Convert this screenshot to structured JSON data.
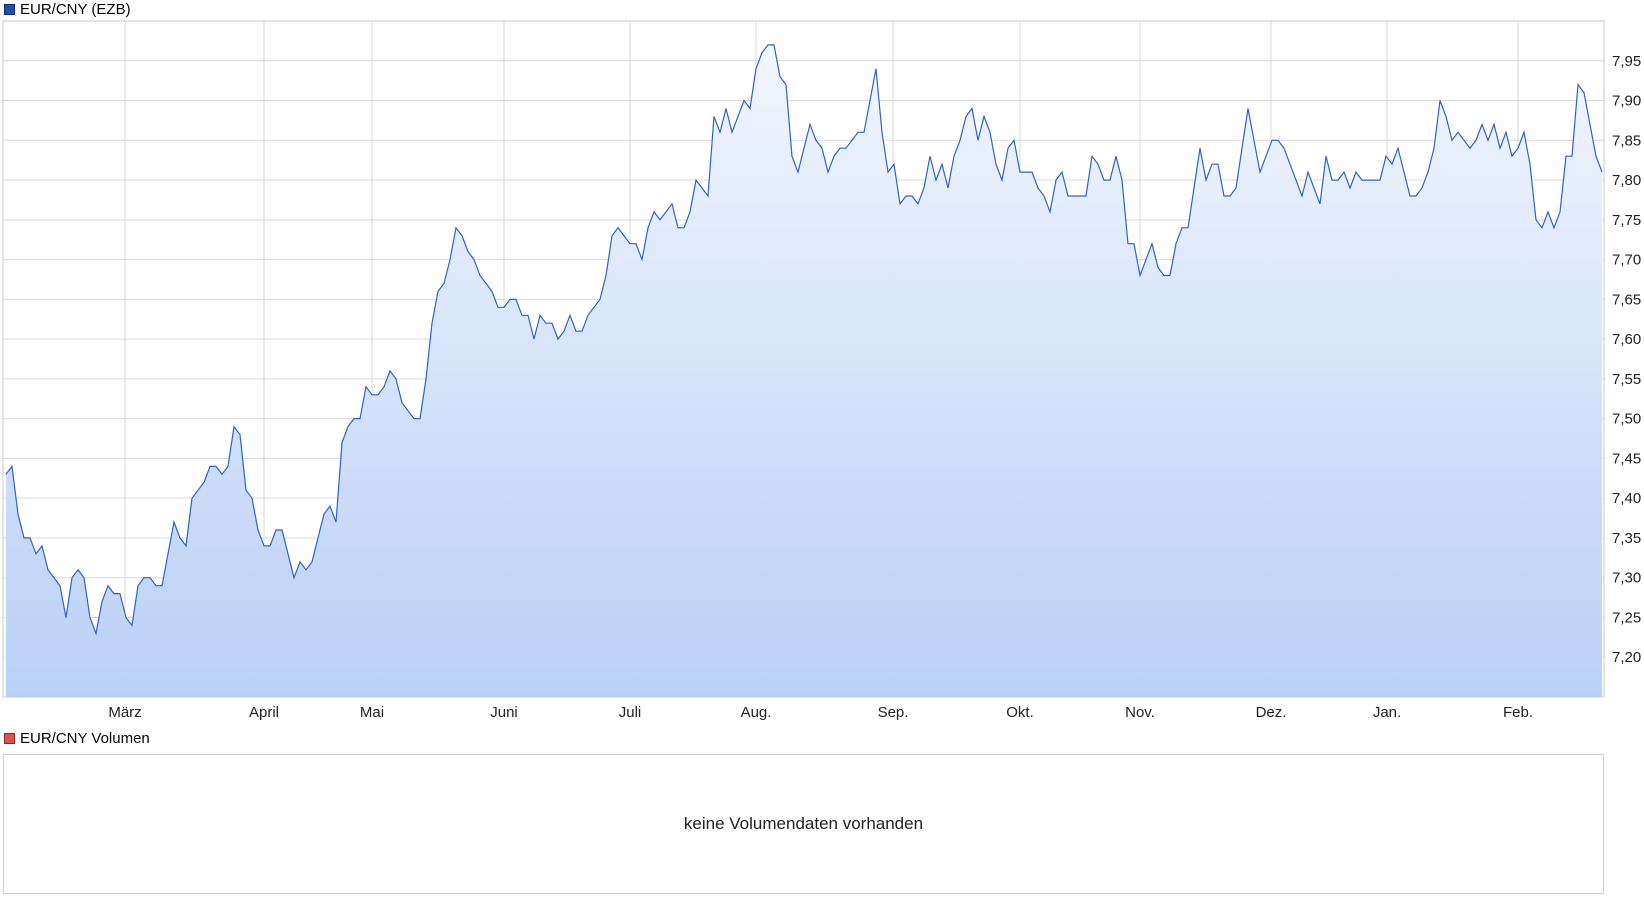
{
  "legend": {
    "main_label": "EUR/CNY (EZB)",
    "main_color": "#1a4fb3",
    "volume_label": "EUR/CNY Volumen",
    "volume_color": "#d9534f"
  },
  "volume_panel": {
    "message": "keine Volumendaten vorhanden"
  },
  "chart_data": {
    "type": "area",
    "series": [
      {
        "values": [
          7.43,
          7.44,
          7.38,
          7.35,
          7.35,
          7.33,
          7.34,
          7.31,
          7.3,
          7.29,
          7.25,
          7.3,
          7.31,
          7.3,
          7.25,
          7.23,
          7.27,
          7.29,
          7.28,
          7.28,
          7.25,
          7.24,
          7.29,
          7.3,
          7.3,
          7.29,
          7.29,
          7.33,
          7.37,
          7.35,
          7.34,
          7.4,
          7.41,
          7.42,
          7.44,
          7.44,
          7.43,
          7.44,
          7.49,
          7.48,
          7.41,
          7.4,
          7.36,
          7.34,
          7.34,
          7.36,
          7.36,
          7.33,
          7.3,
          7.32,
          7.31,
          7.32,
          7.35,
          7.38,
          7.39,
          7.37,
          7.47,
          7.49,
          7.5,
          7.5,
          7.54,
          7.53,
          7.53,
          7.54,
          7.56,
          7.55,
          7.52,
          7.51,
          7.5,
          7.5,
          7.55,
          7.62,
          7.66,
          7.67,
          7.7,
          7.74,
          7.73,
          7.71,
          7.7,
          7.68,
          7.67,
          7.66,
          7.64,
          7.64,
          7.65,
          7.65,
          7.63,
          7.63,
          7.6,
          7.63,
          7.62,
          7.62,
          7.6,
          7.61,
          7.63,
          7.61,
          7.61,
          7.63,
          7.64,
          7.65,
          7.68,
          7.73,
          7.74,
          7.73,
          7.72,
          7.72,
          7.7,
          7.74,
          7.76,
          7.75,
          7.76,
          7.77,
          7.74,
          7.74,
          7.76,
          7.8,
          7.79,
          7.78,
          7.88,
          7.86,
          7.89,
          7.86,
          7.88,
          7.9,
          7.89,
          7.94,
          7.96,
          7.97,
          7.97,
          7.93,
          7.92,
          7.83,
          7.81,
          7.84,
          7.87,
          7.85,
          7.84,
          7.81,
          7.83,
          7.84,
          7.84,
          7.85,
          7.86,
          7.86,
          7.9,
          7.94,
          7.86,
          7.81,
          7.82,
          7.77,
          7.78,
          7.78,
          7.77,
          7.79,
          7.83,
          7.8,
          7.82,
          7.79,
          7.83,
          7.85,
          7.88,
          7.89,
          7.85,
          7.88,
          7.86,
          7.82,
          7.8,
          7.84,
          7.85,
          7.81,
          7.81,
          7.81,
          7.79,
          7.78,
          7.76,
          7.8,
          7.81,
          7.78,
          7.78,
          7.78,
          7.78,
          7.83,
          7.82,
          7.8,
          7.8,
          7.83,
          7.8,
          7.72,
          7.72,
          7.68,
          7.7,
          7.72,
          7.69,
          7.68,
          7.68,
          7.72,
          7.74,
          7.74,
          7.79,
          7.84,
          7.8,
          7.82,
          7.82,
          7.78,
          7.78,
          7.79,
          7.84,
          7.89,
          7.85,
          7.81,
          7.83,
          7.85,
          7.85,
          7.84,
          7.82,
          7.8,
          7.78,
          7.81,
          7.79,
          7.77,
          7.83,
          7.8,
          7.8,
          7.81,
          7.79,
          7.81,
          7.8,
          7.8,
          7.8,
          7.8,
          7.83,
          7.82,
          7.84,
          7.81,
          7.78,
          7.78,
          7.79,
          7.81,
          7.84,
          7.9,
          7.88,
          7.85,
          7.86,
          7.85,
          7.84,
          7.85,
          7.87,
          7.85,
          7.87,
          7.84,
          7.86,
          7.83,
          7.84,
          7.86,
          7.82,
          7.75,
          7.74,
          7.76,
          7.74,
          7.76,
          7.83,
          7.83,
          7.92,
          7.91,
          7.87,
          7.83,
          7.81
        ]
      }
    ],
    "x_tick_labels": [
      "März",
      "April",
      "Mai",
      "Juni",
      "Juli",
      "Aug.",
      "Sep.",
      "Okt.",
      "Nov.",
      "Dez.",
      "Jan.",
      "Feb."
    ],
    "y_ticks": [
      "7,20",
      "7,25",
      "7,30",
      "7,35",
      "7,40",
      "7,45",
      "7,50",
      "7,55",
      "7,60",
      "7,65",
      "7,70",
      "7,75",
      "7,80",
      "7,85",
      "7,90",
      "7,95"
    ],
    "ylim": [
      7.15,
      8.0
    ],
    "grid": true,
    "line_color": "#2e63c5",
    "fill_top_color": "#f2f6fe",
    "fill_bottom_color": "#b9d0f6",
    "grid_color": "#d9d9d9"
  }
}
